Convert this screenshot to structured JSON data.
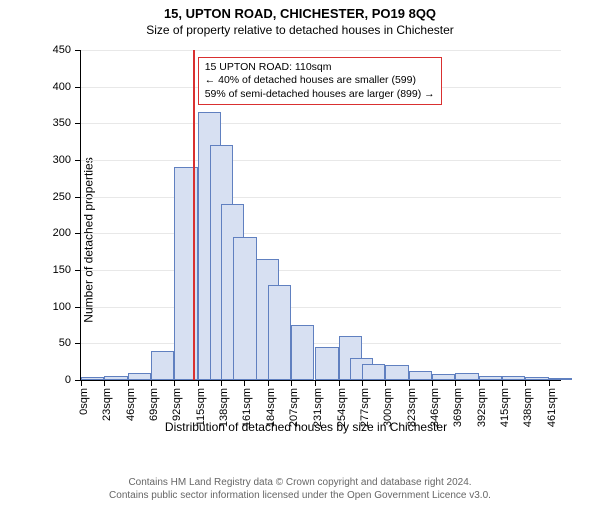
{
  "header": {
    "title": "15, UPTON ROAD, CHICHESTER, PO19 8QQ",
    "subtitle": "Size of property relative to detached houses in Chichester"
  },
  "chart": {
    "type": "histogram",
    "background_color": "#ffffff",
    "grid_color": "#e8e8e8",
    "bar_fill": "#d7e0f2",
    "bar_border": "#6080c0",
    "axis_color": "#000000",
    "y_axis_title": "Number of detached properties",
    "x_axis_title": "Distribution of detached houses by size in Chichester",
    "ylim": [
      0,
      450
    ],
    "ytick_step": 50,
    "xlim": [
      0,
      473
    ],
    "x_ticks": [
      0,
      23,
      46,
      69,
      92,
      115,
      138,
      161,
      184,
      207,
      231,
      254,
      277,
      300,
      323,
      346,
      369,
      392,
      415,
      438,
      461
    ],
    "x_tick_suffix": "sqm",
    "bin_width": 23,
    "bars": [
      {
        "x": 0,
        "y": 4
      },
      {
        "x": 23,
        "y": 6
      },
      {
        "x": 46,
        "y": 10
      },
      {
        "x": 69,
        "y": 40
      },
      {
        "x": 92,
        "y": 290
      },
      {
        "x": 115,
        "y": 365
      },
      {
        "x": 127,
        "y": 320
      },
      {
        "x": 138,
        "y": 240
      },
      {
        "x": 150,
        "y": 195
      },
      {
        "x": 172,
        "y": 165
      },
      {
        "x": 184,
        "y": 130
      },
      {
        "x": 207,
        "y": 75
      },
      {
        "x": 231,
        "y": 45
      },
      {
        "x": 254,
        "y": 60
      },
      {
        "x": 265,
        "y": 30
      },
      {
        "x": 277,
        "y": 22
      },
      {
        "x": 300,
        "y": 20
      },
      {
        "x": 323,
        "y": 12
      },
      {
        "x": 346,
        "y": 8
      },
      {
        "x": 369,
        "y": 10
      },
      {
        "x": 392,
        "y": 6
      },
      {
        "x": 415,
        "y": 5
      },
      {
        "x": 438,
        "y": 4
      },
      {
        "x": 461,
        "y": 3
      }
    ],
    "marker": {
      "x": 110,
      "color": "#d93030"
    },
    "annotation": {
      "border_color": "#d93030",
      "lines": [
        "15 UPTON ROAD: 110sqm",
        "← 40% of detached houses are smaller (599)",
        "59% of semi-detached houses are larger (899) →"
      ],
      "x": 115,
      "y_top": 440
    },
    "label_fontsize": 11,
    "axis_title_fontsize": 12
  },
  "footer": {
    "line1": "Contains HM Land Registry data © Crown copyright and database right 2024.",
    "line2": "Contains public sector information licensed under the Open Government Licence v3.0."
  }
}
